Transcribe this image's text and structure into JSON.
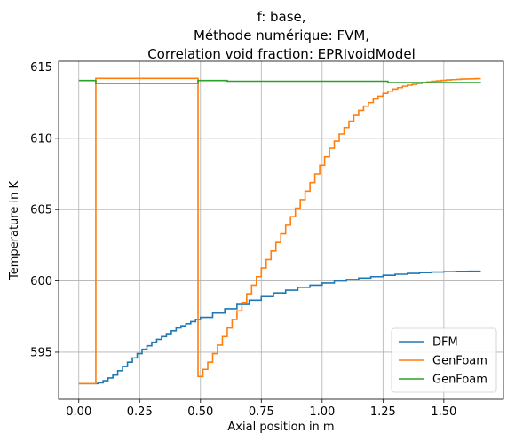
{
  "chart_data": {
    "type": "line",
    "step": true,
    "title_lines": [
      "f: base,",
      "Méthode numérique: FVM,",
      "Correlation void fraction: EPRIvoidModel"
    ],
    "xlabel": "Axial position in m",
    "ylabel": "Temperature in K",
    "xlim": [
      -0.083,
      1.745
    ],
    "ylim": [
      591.7,
      615.4
    ],
    "xticks": [
      0.0,
      0.25,
      0.5,
      0.75,
      1.0,
      1.25,
      1.5
    ],
    "xtick_labels": [
      "0.00",
      "0.25",
      "0.50",
      "0.75",
      "1.00",
      "1.25",
      "1.50"
    ],
    "yticks": [
      595,
      600,
      605,
      610,
      615
    ],
    "ytick_labels": [
      "595",
      "600",
      "605",
      "610",
      "615"
    ],
    "grid": true,
    "legend_position": "lower-right",
    "series": [
      {
        "name": "DFM",
        "color": "#1f77b4",
        "x": [
          0.0,
          0.07,
          0.08,
          0.1,
          0.12,
          0.14,
          0.16,
          0.18,
          0.2,
          0.22,
          0.24,
          0.26,
          0.28,
          0.3,
          0.32,
          0.34,
          0.36,
          0.38,
          0.4,
          0.42,
          0.44,
          0.46,
          0.48,
          0.5,
          0.55,
          0.6,
          0.65,
          0.7,
          0.75,
          0.8,
          0.85,
          0.9,
          0.95,
          1.0,
          1.05,
          1.1,
          1.15,
          1.2,
          1.25,
          1.3,
          1.35,
          1.4,
          1.45,
          1.5,
          1.55,
          1.6,
          1.65
        ],
        "y": [
          592.8,
          592.8,
          592.85,
          593.0,
          593.2,
          593.4,
          593.7,
          594.0,
          594.3,
          594.6,
          594.9,
          595.2,
          595.45,
          595.7,
          595.9,
          596.1,
          596.3,
          596.5,
          596.7,
          596.85,
          597.0,
          597.15,
          597.3,
          597.45,
          597.75,
          598.05,
          598.35,
          598.65,
          598.9,
          599.15,
          599.35,
          599.55,
          599.7,
          599.85,
          600.0,
          600.1,
          600.2,
          600.3,
          600.4,
          600.47,
          600.53,
          600.58,
          600.62,
          600.65,
          600.67,
          600.68,
          600.7
        ]
      },
      {
        "name": "GenFoam",
        "color": "#ff7f0e",
        "x": [
          0.0,
          0.065,
          0.07,
          0.48,
          0.49,
          0.51,
          0.53,
          0.55,
          0.57,
          0.59,
          0.61,
          0.63,
          0.65,
          0.67,
          0.69,
          0.71,
          0.73,
          0.75,
          0.77,
          0.79,
          0.81,
          0.83,
          0.85,
          0.87,
          0.89,
          0.91,
          0.93,
          0.95,
          0.97,
          0.99,
          1.01,
          1.03,
          1.05,
          1.07,
          1.09,
          1.11,
          1.13,
          1.15,
          1.17,
          1.19,
          1.21,
          1.23,
          1.25,
          1.27,
          1.29,
          1.31,
          1.33,
          1.35,
          1.37,
          1.39,
          1.41,
          1.43,
          1.45,
          1.47,
          1.49,
          1.51,
          1.53,
          1.55,
          1.57,
          1.59,
          1.61,
          1.63,
          1.65
        ],
        "y": [
          592.8,
          592.8,
          614.2,
          614.2,
          593.3,
          593.8,
          594.3,
          594.9,
          595.5,
          596.1,
          596.7,
          597.3,
          597.9,
          598.5,
          599.1,
          599.7,
          600.3,
          600.9,
          601.5,
          602.1,
          602.7,
          603.3,
          603.9,
          604.5,
          605.1,
          605.7,
          606.3,
          606.9,
          607.5,
          608.1,
          608.7,
          609.3,
          609.8,
          610.3,
          610.75,
          611.2,
          611.6,
          611.95,
          612.25,
          612.5,
          612.75,
          612.95,
          613.15,
          613.3,
          613.45,
          613.55,
          613.65,
          613.72,
          613.78,
          613.84,
          613.9,
          613.95,
          614.0,
          614.03,
          614.06,
          614.09,
          614.11,
          614.13,
          614.15,
          614.16,
          614.17,
          614.18,
          614.2
        ]
      },
      {
        "name": "GenFoam",
        "color": "#2ca02c",
        "x": [
          0.0,
          0.065,
          0.07,
          0.48,
          0.49,
          0.6,
          0.61,
          1.26,
          1.27,
          1.65
        ],
        "y": [
          614.05,
          614.05,
          613.85,
          613.85,
          614.05,
          614.05,
          614.0,
          614.0,
          613.9,
          613.85
        ]
      }
    ]
  }
}
